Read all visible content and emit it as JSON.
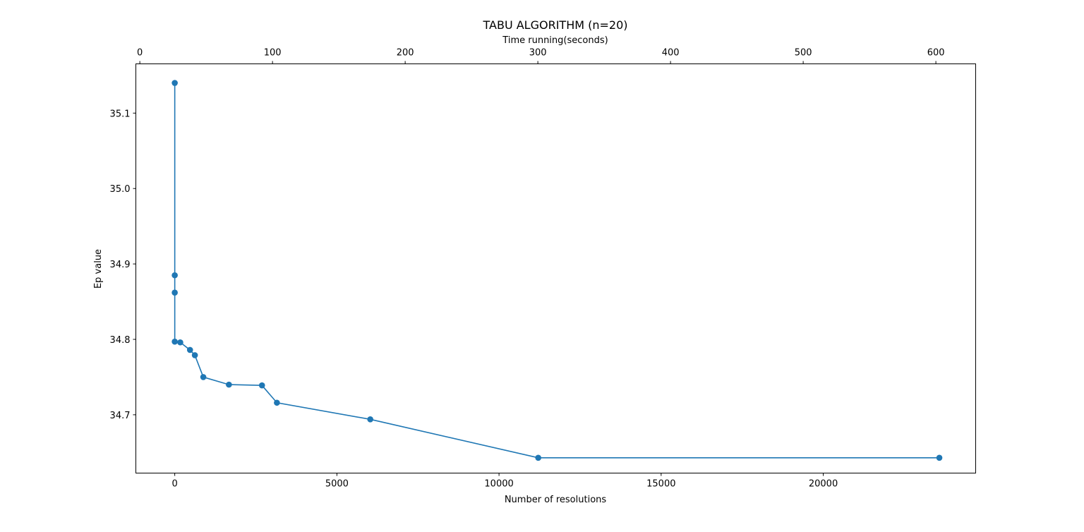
{
  "chart_data": {
    "type": "line",
    "title": "TABU ALGORITHM (n=20)",
    "xlabel": "Number of resolutions",
    "ylabel": "Ep value",
    "top_xlabel": "Time running(seconds)",
    "xlim": [
      -1200,
      24700
    ],
    "ylim": [
      34.6227,
      35.1653
    ],
    "top_xlim": [
      -3.0,
      630.0
    ],
    "x_ticks": [
      0,
      5000,
      10000,
      15000,
      20000
    ],
    "x_tick_labels": [
      "0",
      "5000",
      "10000",
      "15000",
      "20000"
    ],
    "y_ticks": [
      34.7,
      34.8,
      34.9,
      35.0,
      35.1
    ],
    "y_tick_labels": [
      "34.7",
      "34.8",
      "34.9",
      "35.0",
      "35.1"
    ],
    "top_x_ticks": [
      0,
      100,
      200,
      300,
      400,
      500,
      600
    ],
    "top_x_tick_labels": [
      "0",
      "100",
      "200",
      "300",
      "400",
      "500",
      "600"
    ],
    "grid": false,
    "marker": "circle",
    "colors": {
      "series": "#1f77b4",
      "axes": "#000000",
      "background": "#ffffff"
    },
    "series": [
      {
        "x": [
          0,
          0,
          0,
          0,
          170,
          470,
          620,
          880,
          1670,
          2690,
          3150,
          6030,
          11210,
          23580
        ],
        "y": [
          35.14,
          34.885,
          34.862,
          34.797,
          34.796,
          34.786,
          34.779,
          34.75,
          34.74,
          34.739,
          34.716,
          34.694,
          34.643,
          34.643
        ]
      }
    ]
  }
}
